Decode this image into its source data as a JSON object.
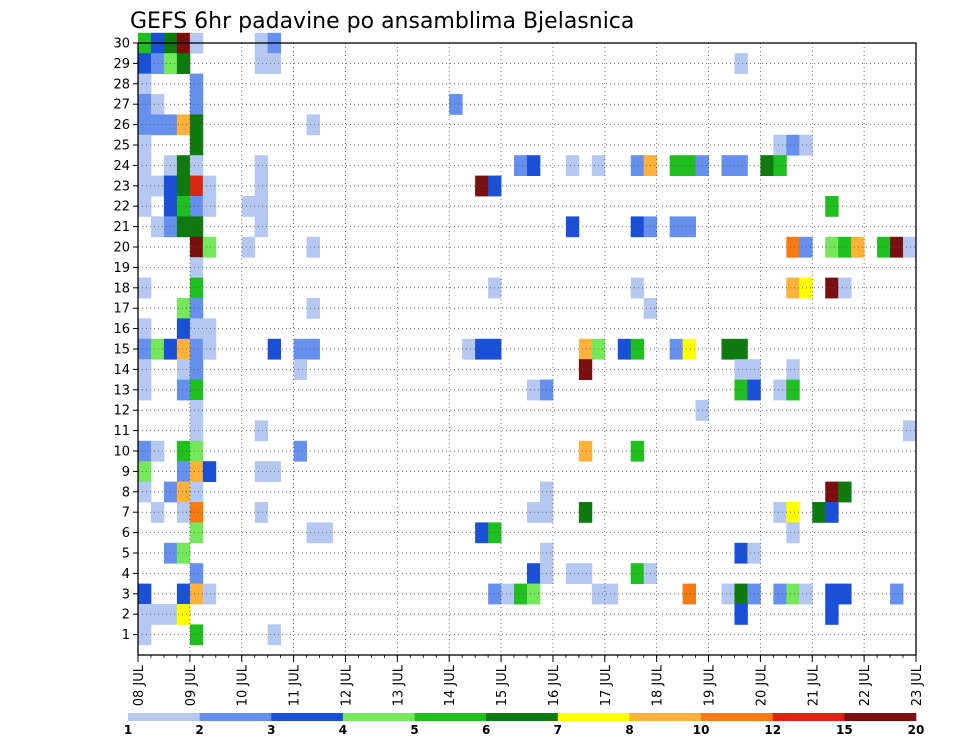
{
  "chart_data": {
    "type": "heatmap",
    "title": "GEFS 6hr padavine po ansamblima Bjelasnica",
    "xlabel": "",
    "ylabel": "",
    "x_tick_labels": [
      "08 JUL",
      "09 JUL",
      "10 JUL",
      "11 JUL",
      "12 JUL",
      "13 JUL",
      "14 JUL",
      "15 JUL",
      "16 JUL",
      "17 JUL",
      "18 JUL",
      "19 JUL",
      "20 JUL",
      "21 JUL",
      "22 JUL",
      "23 JUL"
    ],
    "y_tick_labels": [
      "1",
      "2",
      "3",
      "4",
      "5",
      "6",
      "7",
      "8",
      "9",
      "10",
      "11",
      "12",
      "13",
      "14",
      "15",
      "16",
      "17",
      "18",
      "19",
      "20",
      "21",
      "22",
      "23",
      "24",
      "25",
      "26",
      "27",
      "28",
      "29",
      "30"
    ],
    "ylim": [
      0,
      30
    ],
    "x_steps": 60,
    "step_hours": 6,
    "grid": true,
    "legend_position": "bottom",
    "colorbar": {
      "levels": [
        "1",
        "2",
        "3",
        "4",
        "5",
        "6",
        "7",
        "8",
        "10",
        "12",
        "15",
        "20"
      ],
      "colors": [
        "#b4c8f2",
        "#6690ee",
        "#1a4fd8",
        "#74e85a",
        "#1fbf1f",
        "#0f7a0f",
        "#ffff00",
        "#ffb13a",
        "#f57a12",
        "#d9260f",
        "#7a0f0f"
      ]
    },
    "cells": [
      [
        1,
        30,
        4
      ],
      [
        2,
        30,
        2
      ],
      [
        3,
        30,
        5
      ],
      [
        4,
        30,
        10
      ],
      [
        5,
        30,
        0
      ],
      [
        10,
        30,
        0
      ],
      [
        11,
        30,
        1
      ],
      [
        1,
        29,
        2
      ],
      [
        2,
        29,
        1
      ],
      [
        3,
        29,
        3
      ],
      [
        4,
        29,
        5
      ],
      [
        10,
        29,
        0
      ],
      [
        11,
        29,
        0
      ],
      [
        47,
        29,
        0
      ],
      [
        1,
        28,
        0
      ],
      [
        5,
        28,
        1
      ],
      [
        1,
        27,
        1
      ],
      [
        2,
        27,
        0
      ],
      [
        5,
        27,
        1
      ],
      [
        25,
        27,
        1
      ],
      [
        1,
        26,
        1
      ],
      [
        2,
        26,
        1
      ],
      [
        3,
        26,
        1
      ],
      [
        4,
        26,
        7
      ],
      [
        5,
        26,
        5
      ],
      [
        14,
        26,
        0
      ],
      [
        1,
        25,
        0
      ],
      [
        5,
        25,
        5
      ],
      [
        50,
        25,
        0
      ],
      [
        51,
        25,
        1
      ],
      [
        52,
        25,
        0
      ],
      [
        1,
        24,
        0
      ],
      [
        3,
        24,
        0
      ],
      [
        4,
        24,
        5
      ],
      [
        5,
        24,
        0
      ],
      [
        10,
        24,
        0
      ],
      [
        30,
        24,
        1
      ],
      [
        31,
        24,
        2
      ],
      [
        34,
        24,
        0
      ],
      [
        36,
        24,
        0
      ],
      [
        39,
        24,
        1
      ],
      [
        40,
        24,
        7
      ],
      [
        42,
        24,
        4
      ],
      [
        43,
        24,
        4
      ],
      [
        44,
        24,
        1
      ],
      [
        46,
        24,
        1
      ],
      [
        47,
        24,
        1
      ],
      [
        49,
        24,
        5
      ],
      [
        50,
        24,
        4
      ],
      [
        1,
        23,
        0
      ],
      [
        2,
        23,
        0
      ],
      [
        3,
        23,
        2
      ],
      [
        4,
        23,
        5
      ],
      [
        5,
        23,
        9
      ],
      [
        6,
        23,
        0
      ],
      [
        10,
        23,
        0
      ],
      [
        27,
        23,
        10
      ],
      [
        28,
        23,
        2
      ],
      [
        1,
        22,
        0
      ],
      [
        3,
        22,
        2
      ],
      [
        4,
        22,
        4
      ],
      [
        5,
        22,
        1
      ],
      [
        6,
        22,
        0
      ],
      [
        9,
        22,
        0
      ],
      [
        10,
        22,
        0
      ],
      [
        54,
        22,
        4
      ],
      [
        2,
        21,
        0
      ],
      [
        3,
        21,
        1
      ],
      [
        4,
        21,
        5
      ],
      [
        5,
        21,
        5
      ],
      [
        10,
        21,
        0
      ],
      [
        34,
        21,
        2
      ],
      [
        39,
        21,
        2
      ],
      [
        40,
        21,
        1
      ],
      [
        42,
        21,
        1
      ],
      [
        43,
        21,
        1
      ],
      [
        5,
        20,
        10
      ],
      [
        6,
        20,
        3
      ],
      [
        9,
        20,
        0
      ],
      [
        14,
        20,
        0
      ],
      [
        51,
        20,
        8
      ],
      [
        52,
        20,
        1
      ],
      [
        54,
        20,
        3
      ],
      [
        55,
        20,
        4
      ],
      [
        56,
        20,
        7
      ],
      [
        58,
        20,
        4
      ],
      [
        59,
        20,
        10
      ],
      [
        60,
        20,
        0
      ],
      [
        5,
        19,
        0
      ],
      [
        1,
        18,
        0
      ],
      [
        5,
        18,
        4
      ],
      [
        28,
        18,
        0
      ],
      [
        39,
        18,
        0
      ],
      [
        51,
        18,
        7
      ],
      [
        52,
        18,
        6
      ],
      [
        54,
        18,
        10
      ],
      [
        55,
        18,
        0
      ],
      [
        4,
        17,
        3
      ],
      [
        5,
        17,
        1
      ],
      [
        14,
        17,
        0
      ],
      [
        40,
        17,
        0
      ],
      [
        1,
        16,
        0
      ],
      [
        4,
        16,
        2
      ],
      [
        5,
        16,
        0
      ],
      [
        6,
        16,
        0
      ],
      [
        1,
        15,
        1
      ],
      [
        2,
        15,
        3
      ],
      [
        3,
        15,
        2
      ],
      [
        4,
        15,
        7
      ],
      [
        5,
        15,
        1
      ],
      [
        6,
        15,
        0
      ],
      [
        11,
        15,
        2
      ],
      [
        13,
        15,
        1
      ],
      [
        14,
        15,
        1
      ],
      [
        26,
        15,
        0
      ],
      [
        27,
        15,
        2
      ],
      [
        28,
        15,
        2
      ],
      [
        35,
        15,
        7
      ],
      [
        36,
        15,
        3
      ],
      [
        38,
        15,
        2
      ],
      [
        39,
        15,
        4
      ],
      [
        42,
        15,
        1
      ],
      [
        43,
        15,
        6
      ],
      [
        46,
        15,
        5
      ],
      [
        47,
        15,
        5
      ],
      [
        1,
        14,
        0
      ],
      [
        4,
        14,
        0
      ],
      [
        5,
        14,
        1
      ],
      [
        13,
        14,
        0
      ],
      [
        35,
        14,
        10
      ],
      [
        47,
        14,
        0
      ],
      [
        48,
        14,
        0
      ],
      [
        51,
        14,
        0
      ],
      [
        1,
        13,
        0
      ],
      [
        4,
        13,
        1
      ],
      [
        5,
        13,
        4
      ],
      [
        31,
        13,
        0
      ],
      [
        32,
        13,
        1
      ],
      [
        47,
        13,
        4
      ],
      [
        48,
        13,
        2
      ],
      [
        50,
        13,
        0
      ],
      [
        51,
        13,
        4
      ],
      [
        5,
        12,
        0
      ],
      [
        44,
        12,
        0
      ],
      [
        5,
        11,
        0
      ],
      [
        10,
        11,
        0
      ],
      [
        60,
        11,
        0
      ],
      [
        1,
        10,
        1
      ],
      [
        2,
        10,
        0
      ],
      [
        4,
        10,
        4
      ],
      [
        5,
        10,
        3
      ],
      [
        13,
        10,
        1
      ],
      [
        35,
        10,
        7
      ],
      [
        39,
        10,
        4
      ],
      [
        1,
        9,
        3
      ],
      [
        4,
        9,
        1
      ],
      [
        5,
        9,
        7
      ],
      [
        6,
        9,
        2
      ],
      [
        10,
        9,
        0
      ],
      [
        11,
        9,
        0
      ],
      [
        1,
        8,
        0
      ],
      [
        3,
        8,
        1
      ],
      [
        4,
        8,
        7
      ],
      [
        5,
        8,
        0
      ],
      [
        32,
        8,
        0
      ],
      [
        54,
        8,
        10
      ],
      [
        55,
        8,
        5
      ],
      [
        2,
        7,
        0
      ],
      [
        4,
        7,
        0
      ],
      [
        5,
        7,
        8
      ],
      [
        10,
        7,
        0
      ],
      [
        31,
        7,
        0
      ],
      [
        32,
        7,
        0
      ],
      [
        35,
        7,
        5
      ],
      [
        50,
        7,
        0
      ],
      [
        51,
        7,
        6
      ],
      [
        53,
        7,
        5
      ],
      [
        54,
        7,
        2
      ],
      [
        5,
        6,
        3
      ],
      [
        14,
        6,
        0
      ],
      [
        15,
        6,
        0
      ],
      [
        27,
        6,
        2
      ],
      [
        28,
        6,
        4
      ],
      [
        51,
        6,
        0
      ],
      [
        3,
        5,
        1
      ],
      [
        4,
        5,
        3
      ],
      [
        32,
        5,
        0
      ],
      [
        47,
        5,
        2
      ],
      [
        48,
        5,
        0
      ],
      [
        5,
        4,
        1
      ],
      [
        31,
        4,
        2
      ],
      [
        32,
        4,
        0
      ],
      [
        34,
        4,
        0
      ],
      [
        35,
        4,
        0
      ],
      [
        39,
        4,
        4
      ],
      [
        40,
        4,
        0
      ],
      [
        1,
        3,
        2
      ],
      [
        4,
        3,
        2
      ],
      [
        5,
        3,
        7
      ],
      [
        6,
        3,
        0
      ],
      [
        28,
        3,
        1
      ],
      [
        29,
        3,
        0
      ],
      [
        30,
        3,
        4
      ],
      [
        31,
        3,
        3
      ],
      [
        36,
        3,
        0
      ],
      [
        37,
        3,
        0
      ],
      [
        43,
        3,
        8
      ],
      [
        46,
        3,
        0
      ],
      [
        47,
        3,
        5
      ],
      [
        48,
        3,
        1
      ],
      [
        50,
        3,
        1
      ],
      [
        51,
        3,
        3
      ],
      [
        52,
        3,
        0
      ],
      [
        54,
        3,
        2
      ],
      [
        55,
        3,
        2
      ],
      [
        59,
        3,
        1
      ],
      [
        1,
        2,
        0
      ],
      [
        2,
        2,
        0
      ],
      [
        3,
        2,
        0
      ],
      [
        4,
        2,
        6
      ],
      [
        47,
        2,
        2
      ],
      [
        54,
        2,
        2
      ],
      [
        1,
        1,
        0
      ],
      [
        5,
        1,
        4
      ],
      [
        11,
        1,
        0
      ]
    ]
  }
}
